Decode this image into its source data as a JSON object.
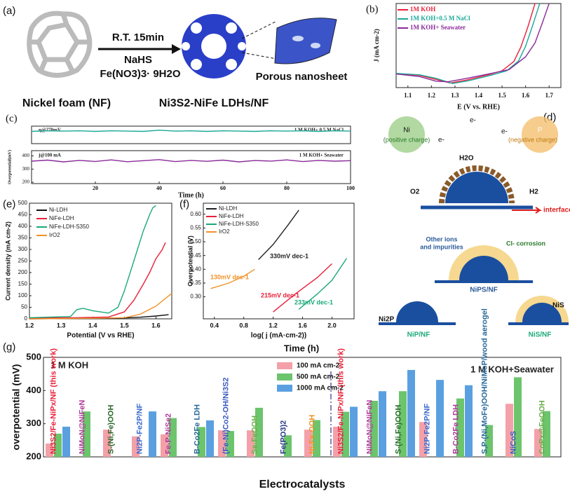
{
  "panels": [
    "(a)",
    "(b)",
    "(c)",
    "(d)",
    "(e)",
    "(f)",
    "(g)"
  ],
  "diagram_a": {
    "step": "R.T. 15min",
    "reagent1": "NaHS",
    "reagent2": "Fe(NO3)3· 9H2O",
    "zoom": "Porous nanosheet",
    "start": "Nickel foam (NF)",
    "product": "Ni3S2-NiFe LDHs/NF"
  },
  "diagram_d": {
    "ni": "Ni",
    "ni_note": "(positive charge)",
    "p": "P",
    "p_note": "(negative charge)",
    "electron": "e-",
    "water": "H2O",
    "oxygen": "O2",
    "hydrogen": "H2",
    "interface": "interface",
    "ions1": "Other ions",
    "ions2": "and impurities",
    "corrosion": "Cl- corrosion",
    "nips": "NiPS/NF",
    "ni2p": "Ni2P",
    "nip": "NiP/NF",
    "nis": "NiS",
    "nisnf": "NiS/NF"
  },
  "overlay_label": "Time (h)",
  "chart_data": [
    {
      "type": "line",
      "xlabel": "E (V vs. RHE)",
      "ylabel": "J (mA cm-2)",
      "xlim": [
        1.05,
        1.75
      ],
      "ylim": [
        -250,
        1200
      ],
      "xticks": [
        1.1,
        1.2,
        1.3,
        1.4,
        1.5,
        1.6,
        1.7
      ],
      "series": [
        {
          "name": "1M KOH",
          "color": "#e8203a",
          "x": [
            1.05,
            1.15,
            1.22,
            1.28,
            1.35,
            1.45,
            1.5,
            1.55,
            1.58,
            1.61,
            1.64
          ],
          "values": [
            -10,
            -40,
            -110,
            -170,
            -120,
            -20,
            40,
            200,
            450,
            800,
            1200
          ]
        },
        {
          "name": "1M KOH+0.5 M NaCl",
          "color": "#1aa89a",
          "x": [
            1.05,
            1.15,
            1.22,
            1.29,
            1.36,
            1.46,
            1.52,
            1.57,
            1.6,
            1.63,
            1.66
          ],
          "values": [
            -5,
            -30,
            -90,
            -180,
            -130,
            -30,
            40,
            210,
            460,
            820,
            1200
          ]
        },
        {
          "name": "1M KOH+ Seawater",
          "color": "#8a2a9a",
          "x": [
            1.05,
            1.15,
            1.22,
            1.27,
            1.35,
            1.45,
            1.53,
            1.6,
            1.64,
            1.67,
            1.7
          ],
          "values": [
            -15,
            -60,
            -140,
            -150,
            -90,
            -10,
            60,
            280,
            520,
            850,
            1200
          ]
        }
      ]
    },
    {
      "type": "line",
      "annotations": [
        "η@270mV",
        "1 M KOH+ 0.5 M NaCl"
      ],
      "xlim": [
        0,
        100
      ],
      "ylim": [
        70,
        100
      ],
      "series": [
        {
          "name": "NaCl",
          "color": "#1aa89a",
          "x": [
            0,
            5,
            10,
            15,
            20,
            25,
            30,
            35,
            40,
            45,
            50,
            55,
            60,
            65,
            70,
            75,
            80,
            85,
            90,
            95,
            100
          ],
          "values": [
            91,
            92,
            91.5,
            92,
            91,
            92,
            91.5,
            91,
            93,
            91.5,
            92,
            91,
            92,
            91.5,
            91,
            92,
            91.5,
            92,
            91,
            92,
            91.5
          ]
        }
      ]
    },
    {
      "type": "line",
      "annotations": [
        "j@100 mA",
        "1 M KOH+ Seawater"
      ],
      "ylabel": "Overpotential(mV)",
      "xlabel": "Time (h)",
      "xlim": [
        0,
        100
      ],
      "ylim": [
        190,
        440
      ],
      "xticks": [
        20,
        40,
        60,
        80,
        100
      ],
      "yticks": [
        200,
        300,
        400
      ],
      "series": [
        {
          "name": "Seawater",
          "color": "#8a2a9a",
          "x": [
            0,
            5,
            10,
            15,
            20,
            25,
            30,
            35,
            40,
            45,
            50,
            55,
            60,
            65,
            70,
            75,
            80,
            85,
            90,
            95,
            100
          ],
          "values": [
            360,
            368,
            355,
            366,
            358,
            370,
            356,
            364,
            372,
            357,
            366,
            359,
            368,
            355,
            365,
            361,
            370,
            357,
            366,
            360,
            364
          ]
        }
      ]
    },
    {
      "type": "line",
      "xlabel": "Potential (V vs RHE)",
      "ylabel": "Current density (mA cm-2)",
      "xlim": [
        1.2,
        1.65
      ],
      "ylim": [
        0,
        500
      ],
      "xticks": [
        1.2,
        1.3,
        1.4,
        1.5,
        1.6
      ],
      "yticks": [
        0,
        50,
        100,
        150,
        200,
        250,
        300,
        350,
        400,
        450,
        500
      ],
      "series": [
        {
          "name": "Ni-LDH",
          "color": "#111111",
          "x": [
            1.2,
            1.3,
            1.4,
            1.5,
            1.55,
            1.6,
            1.64
          ],
          "values": [
            0,
            1,
            2,
            4,
            7,
            12,
            18
          ]
        },
        {
          "name": "NiFe-LDH",
          "color": "#e8203a",
          "x": [
            1.2,
            1.35,
            1.45,
            1.5,
            1.53,
            1.56,
            1.58,
            1.6,
            1.62,
            1.63
          ],
          "values": [
            3,
            5,
            8,
            30,
            80,
            150,
            200,
            260,
            300,
            330
          ]
        },
        {
          "name": "NiFe-LDH-S350",
          "color": "#1aa87a",
          "x": [
            1.2,
            1.33,
            1.35,
            1.37,
            1.4,
            1.45,
            1.48,
            1.5,
            1.53,
            1.56,
            1.58,
            1.59,
            1.6
          ],
          "values": [
            5,
            10,
            40,
            45,
            35,
            25,
            50,
            120,
            250,
            380,
            450,
            480,
            490
          ]
        },
        {
          "name": "IrO2",
          "color": "#f0922a",
          "x": [
            1.2,
            1.4,
            1.5,
            1.55,
            1.6,
            1.65
          ],
          "values": [
            0,
            2,
            5,
            20,
            55,
            110
          ]
        }
      ]
    },
    {
      "type": "line",
      "xlabel": "log( j (mA·cm-2))",
      "ylabel": "Overpotential (V)",
      "xlim": [
        0.25,
        2.3
      ],
      "ylim": [
        0.22,
        0.64
      ],
      "xticks": [
        0.4,
        0.8,
        1.2,
        1.6,
        {
          "value": 2,
          "label": "2.0"
        }
      ],
      "yticks": [
        {
          "value": 0.3,
          "label": "0.30"
        },
        0.35,
        {
          "value": 0.4,
          "label": "0.40"
        },
        0.45,
        {
          "value": 0.5,
          "label": "0.50"
        },
        0.55,
        {
          "value": 0.6,
          "label": "0.60"
        }
      ],
      "annotations": [
        "330mV dec-1",
        "130mV dec-1",
        "215mV dec-1",
        "233mV dec-1"
      ],
      "series": [
        {
          "name": "Ni-LDH",
          "color": "#222222",
          "x": [
            1.0,
            1.2,
            1.4,
            1.55
          ],
          "values": [
            0.435,
            0.49,
            0.56,
            0.615
          ]
        },
        {
          "name": "NiFe-LDH",
          "color": "#e8203a",
          "x": [
            1.2,
            1.5,
            1.8,
            2.0
          ],
          "values": [
            0.245,
            0.31,
            0.37,
            0.42
          ]
        },
        {
          "name": "NiFe-LDH-S350",
          "color": "#1aa87a",
          "x": [
            1.55,
            1.8,
            2.0,
            2.2
          ],
          "values": [
            0.255,
            0.31,
            0.36,
            0.44
          ]
        },
        {
          "name": "IrO2",
          "color": "#f0922a",
          "x": [
            0.35,
            0.6,
            0.8,
            0.95
          ],
          "values": [
            0.33,
            0.35,
            0.375,
            0.4
          ]
        }
      ]
    },
    {
      "type": "bar",
      "xlabel": "Electrocatalysts",
      "ylabel": "overpotential (mV)",
      "annotations": [
        "1 M KOH",
        "1 M KOH+Seawater"
      ],
      "ylim": [
        200,
        500
      ],
      "yticks": [
        200,
        300,
        400,
        500
      ],
      "categories": [
        "Ni3S2/Fe-NiPx/NF (this work)",
        "NiMoN@NiFeN",
        "S-(Ni,Fe)OOH",
        "Ni2P-Fe2P/NF",
        "Fe-P-NiSe2",
        "B-Co2Fe LDH",
        "(Fe-Ni)Co2-OH/Ni3S2",
        "Se-FeOOH",
        "Fe(PO3)2",
        "Ni-Fe-OOH",
        "Ni3S2/Fe-NiPx/NF (this work)",
        "NiMoN@NiFeN",
        "S-(Ni,Fe)OOH",
        "Ni2P-Fe2P/NF",
        "B-Co2Fe LDH",
        "S,P-(Ni,MoFe)OOH/NiMoP/wood aerogel",
        "NiCoS",
        "CoPx@FeOOH"
      ],
      "series": [
        {
          "name": "100 mA cm-2",
          "color": "#f4a0a8",
          "values": [
            240,
            null,
            282,
            262,
            268,
            null,
            280,
            280,
            null,
            282,
            291,
            null,
            null,
            305,
            null,
            null,
            360,
            284
          ]
        },
        {
          "name": "500 mA cm-2",
          "color": "#6cc46c",
          "values": [
            270,
            337,
            null,
            null,
            317,
            290,
            278,
            348,
            265,
            311,
            336,
            369,
            398,
            null,
            376,
            296,
            440,
            338
          ]
        },
        {
          "name": "1000 mA cm-2",
          "color": "#5aa0e0",
          "values": [
            291,
            null,
            null,
            337,
            null,
            310,
            null,
            null,
            null,
            null,
            351,
            398,
            462,
            432,
            416,
            null,
            null,
            null
          ]
        }
      ]
    }
  ]
}
